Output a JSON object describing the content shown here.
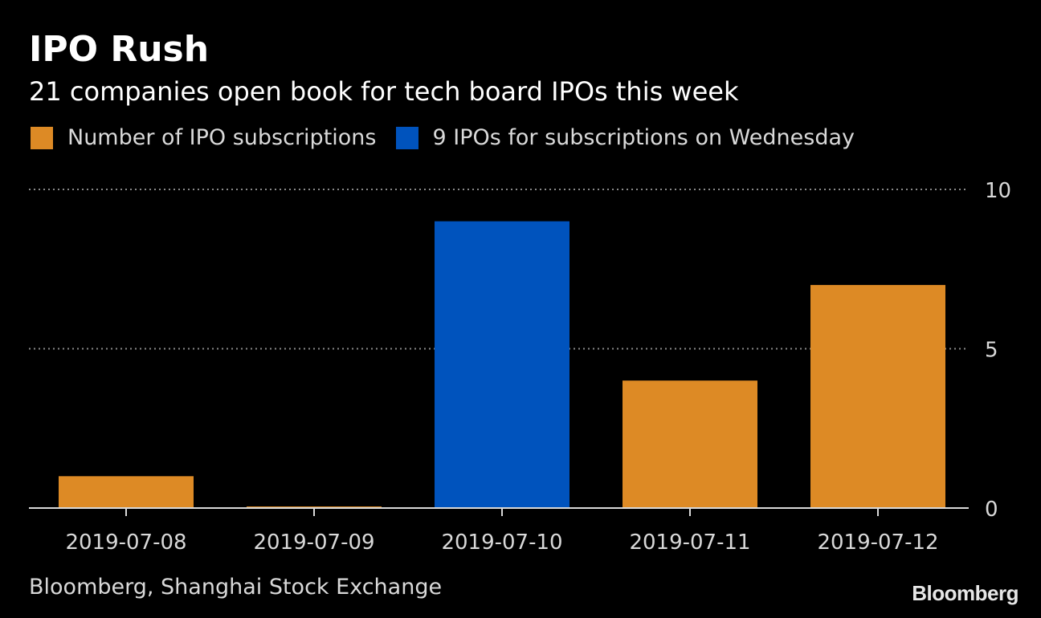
{
  "header": {
    "title": "IPO Rush",
    "subtitle": "21 companies open book for tech board IPOs this week"
  },
  "legend": [
    {
      "label": "Number of IPO subscriptions",
      "color": "#dd8a25"
    },
    {
      "label": "9 IPOs for subscriptions on Wednesday",
      "color": "#0053bd"
    }
  ],
  "footer": {
    "source": "Bloomberg, Shanghai Stock Exchange",
    "logo": "Bloomberg"
  },
  "chart_data": {
    "type": "bar",
    "title": "IPO Rush",
    "subtitle": "21 companies open book for tech board IPOs this week",
    "categories": [
      "2019-07-08",
      "2019-07-09",
      "2019-07-10",
      "2019-07-11",
      "2019-07-12"
    ],
    "series": [
      {
        "name": "Number of IPO subscriptions",
        "values": [
          1,
          0,
          9,
          4,
          7
        ],
        "color": "#dd8a25"
      }
    ],
    "highlight": {
      "index": 2,
      "color": "#0053bd",
      "label": "9 IPOs for subscriptions on Wednesday"
    },
    "ylim": [
      0,
      10
    ],
    "yticks": [
      0,
      5,
      10
    ],
    "ytick_labels": [
      "0",
      "5",
      "10"
    ],
    "grid": true,
    "y_axis_side": "right",
    "legend_position": "top-left"
  }
}
